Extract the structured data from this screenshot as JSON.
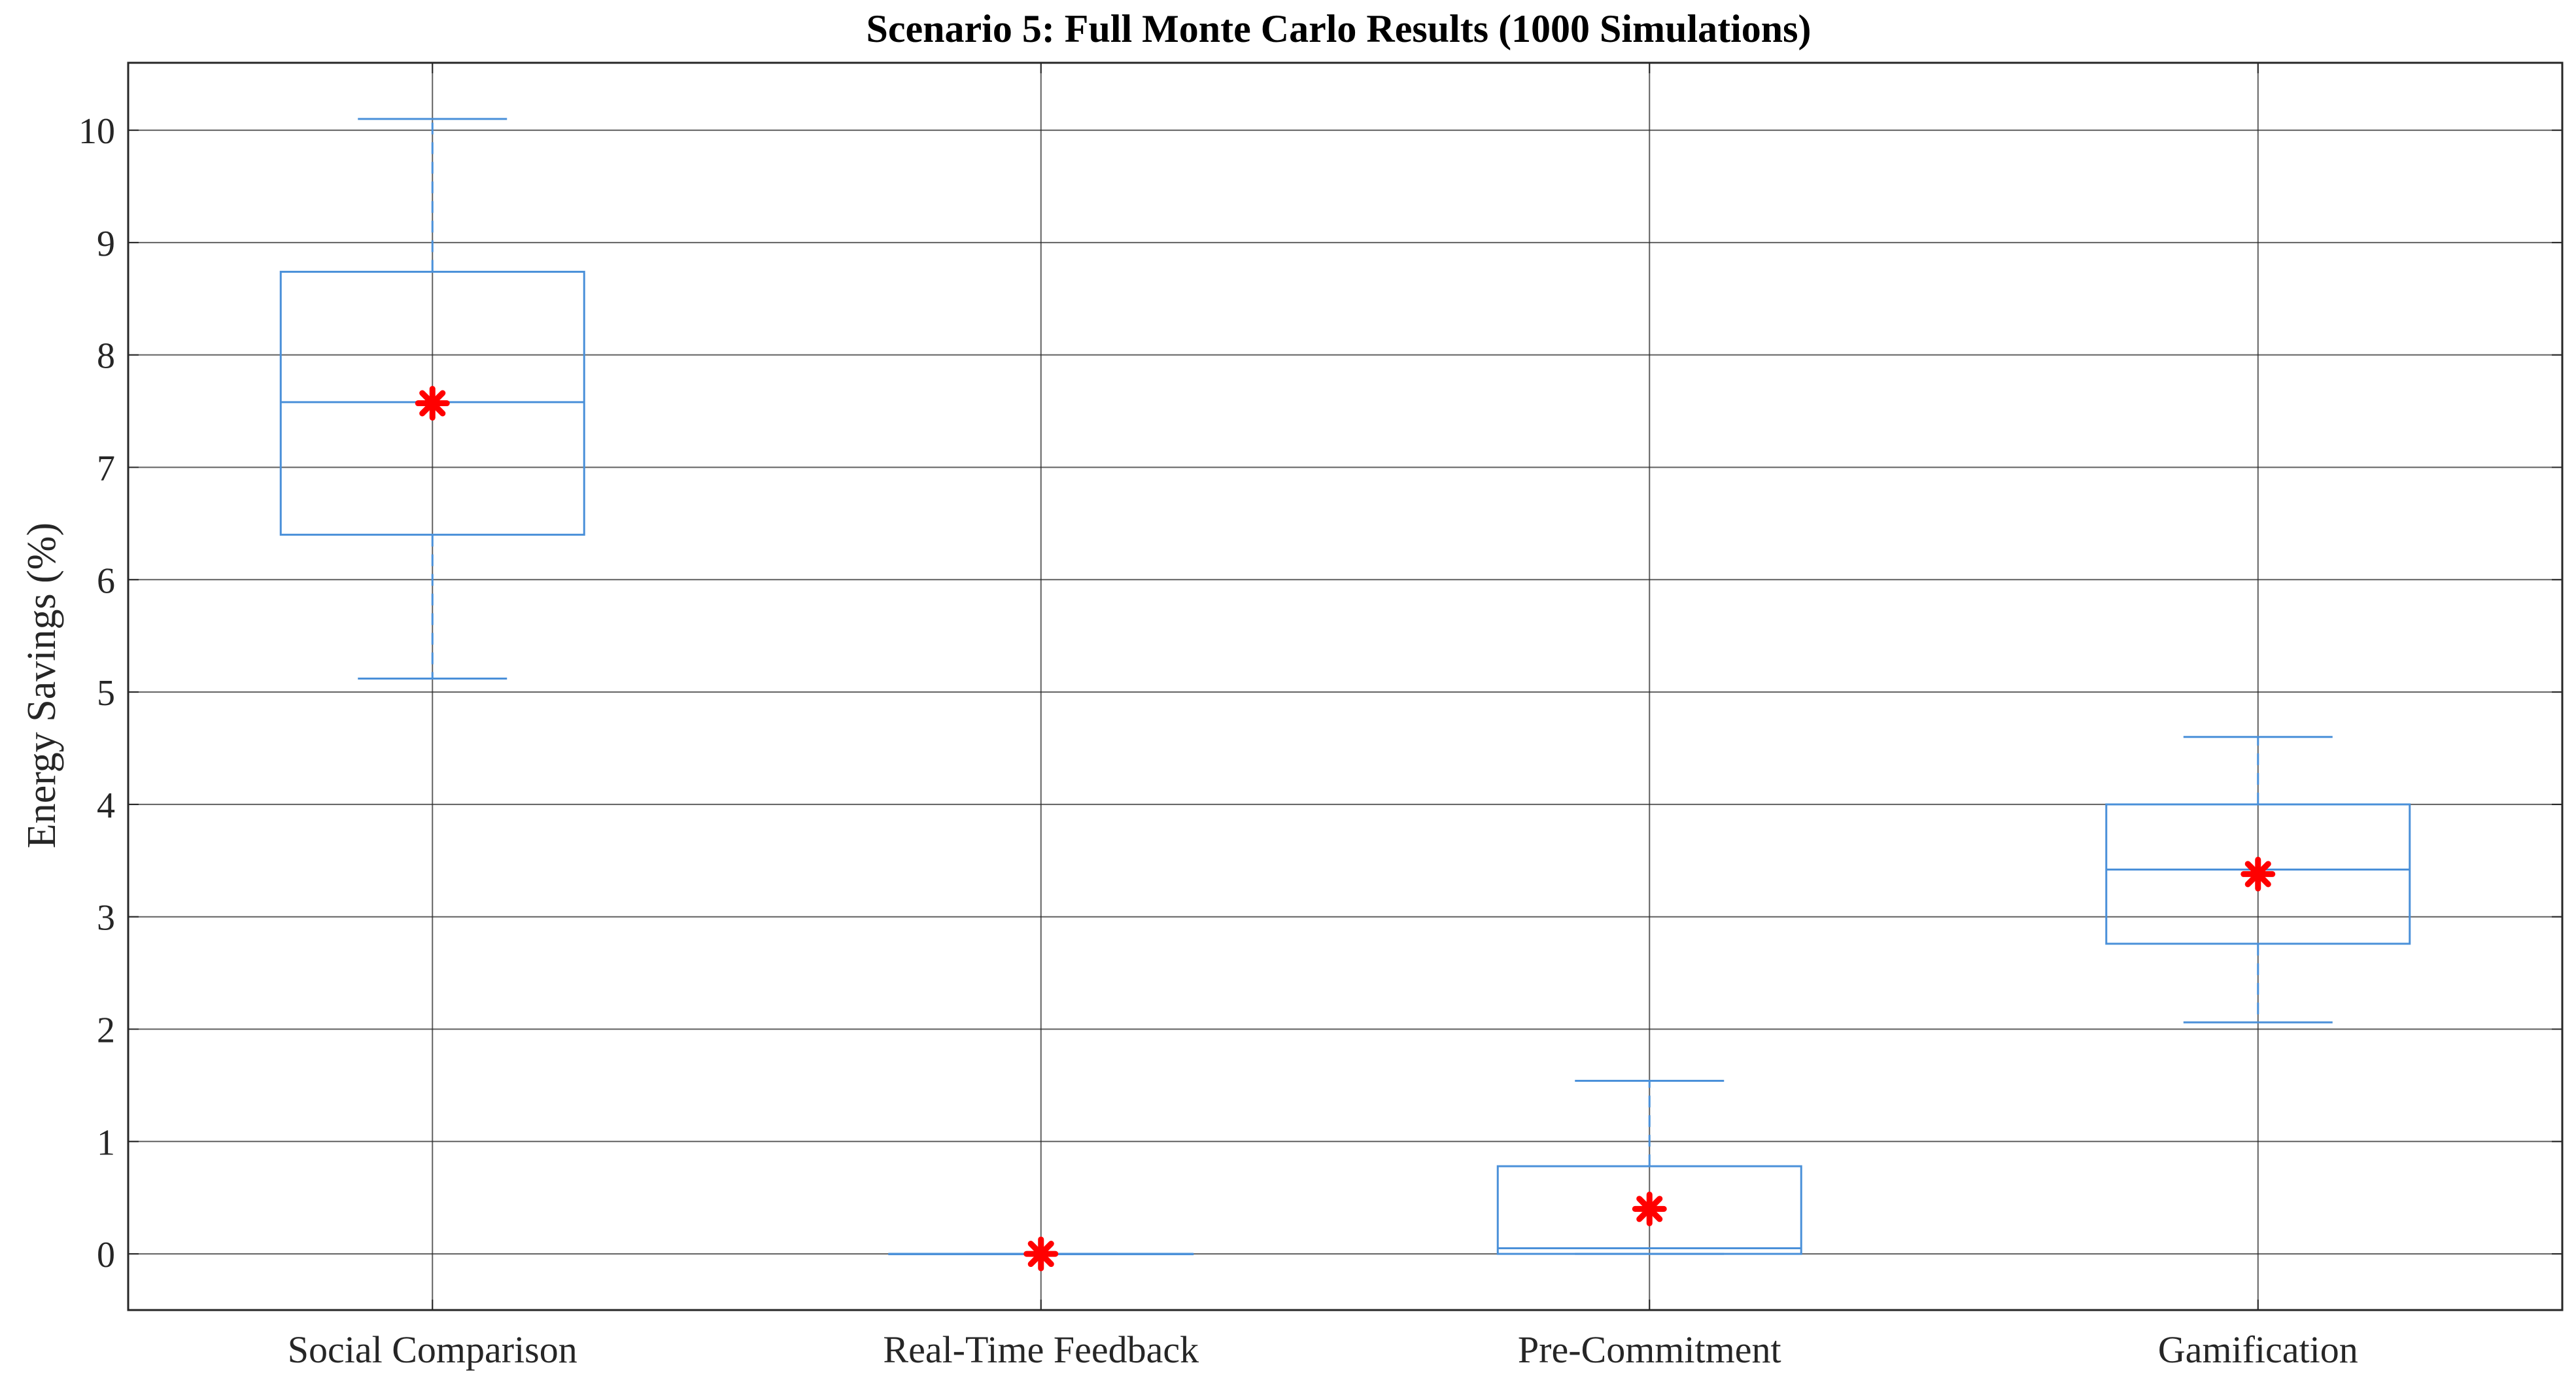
{
  "chart_data": {
    "type": "box",
    "title": "Scenario 5: Full Monte Carlo Results (1000 Simulations)",
    "xlabel": "",
    "ylabel": "Energy Savings (%)",
    "ylim": [
      -0.5,
      10.6
    ],
    "yticks": [
      0,
      1,
      2,
      3,
      4,
      5,
      6,
      7,
      8,
      9,
      10
    ],
    "grid": true,
    "categories": [
      "Social Comparison",
      "Real-Time Feedback",
      "Pre-Commitment",
      "Gamification"
    ],
    "boxes": [
      {
        "whisker_low": 5.12,
        "q1": 6.4,
        "median": 7.58,
        "q3": 8.74,
        "whisker_high": 10.1,
        "mean": 7.57
      },
      {
        "whisker_low": 0,
        "q1": 0,
        "median": 0,
        "q3": 0,
        "whisker_high": 0,
        "mean": 0
      },
      {
        "whisker_low": 0,
        "q1": 0,
        "median": 0.05,
        "q3": 0.78,
        "whisker_high": 1.54,
        "mean": 0.4
      },
      {
        "whisker_low": 2.06,
        "q1": 2.76,
        "median": 3.42,
        "q3": 4.0,
        "whisker_high": 4.6,
        "mean": 3.38
      }
    ],
    "colors": {
      "box": "#4a90d9",
      "mean_marker": "#ff0000",
      "grid": "#2b2b2b",
      "axis": "#262626",
      "text": "#262626"
    }
  }
}
